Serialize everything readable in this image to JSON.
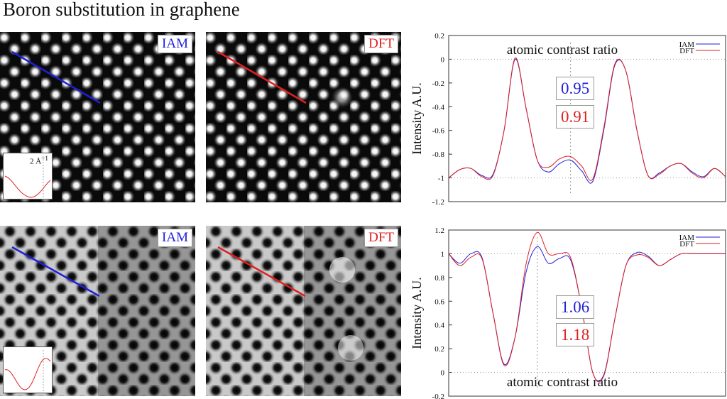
{
  "title": "Boron substitution in graphene",
  "colors": {
    "iam": "#1f1fd9",
    "dft": "#e02020"
  },
  "panels": {
    "top_left": {
      "label": "IAM",
      "inset_label": "2 Å",
      "inset_sup": "−1"
    },
    "top_right": {
      "label": "DFT"
    },
    "bottom_left": {
      "label": "IAM"
    },
    "bottom_right": {
      "label": "DFT"
    }
  },
  "chart_data": [
    {
      "type": "line",
      "title": "",
      "ylabel": "Intensity A.U.",
      "xlabel": "",
      "ylim": [
        -1.2,
        0.2
      ],
      "yticks": [
        "0.2",
        "0",
        "-0.2",
        "-0.4",
        "-0.6",
        "-0.8",
        "-1",
        "-1.2"
      ],
      "annotation": "atomic contrast ratio",
      "legend": [
        "IAM",
        "DFT"
      ],
      "ratios": {
        "iam": "0.95",
        "dft": "0.91"
      },
      "x": [
        0,
        0.04,
        0.08,
        0.12,
        0.16,
        0.2,
        0.24,
        0.28,
        0.32,
        0.36,
        0.4,
        0.44,
        0.48,
        0.52,
        0.56,
        0.6,
        0.64,
        0.68,
        0.72,
        0.76,
        0.8,
        0.84,
        0.88,
        0.92,
        0.96,
        1.0
      ],
      "series": [
        {
          "name": "IAM",
          "values": [
            -1.0,
            -0.93,
            -0.92,
            -0.98,
            -0.97,
            -0.6,
            0.0,
            -0.42,
            -0.85,
            -0.95,
            -0.88,
            -0.85,
            -0.94,
            -1.03,
            -0.6,
            -0.05,
            -0.1,
            -0.6,
            -0.98,
            -0.96,
            -0.9,
            -0.88,
            -0.95,
            -0.99,
            -0.92,
            -0.99
          ]
        },
        {
          "name": "DFT",
          "values": [
            -1.0,
            -0.93,
            -0.92,
            -0.99,
            -0.98,
            -0.6,
            0.01,
            -0.42,
            -0.85,
            -0.91,
            -0.84,
            -0.82,
            -0.9,
            -1.01,
            -0.58,
            -0.04,
            -0.1,
            -0.6,
            -0.98,
            -0.97,
            -0.9,
            -0.88,
            -0.96,
            -1.0,
            -0.92,
            -0.99
          ]
        }
      ]
    },
    {
      "type": "line",
      "title": "",
      "ylabel": "Intensity A.U.",
      "xlabel": "",
      "ylim": [
        -0.2,
        1.2
      ],
      "yticks": [
        "1.2",
        "1",
        "0.8",
        "0.6",
        "0.4",
        "0.2",
        "0",
        "-0.2"
      ],
      "annotation": "atomic contrast ratio",
      "legend": [
        "IAM",
        "DFT"
      ],
      "ratios": {
        "iam": "1.06",
        "dft": "1.18"
      },
      "x": [
        0,
        0.04,
        0.08,
        0.12,
        0.16,
        0.2,
        0.24,
        0.28,
        0.32,
        0.36,
        0.4,
        0.44,
        0.48,
        0.52,
        0.56,
        0.6,
        0.64,
        0.68,
        0.72,
        0.76,
        0.8,
        0.84,
        0.88,
        0.92,
        0.96,
        1.0
      ],
      "series": [
        {
          "name": "IAM",
          "values": [
            1.0,
            0.92,
            1.0,
            0.97,
            0.5,
            0.07,
            0.3,
            0.85,
            1.06,
            0.92,
            0.96,
            0.95,
            0.55,
            0.0,
            -0.02,
            0.45,
            0.9,
            1.01,
            0.98,
            0.9,
            0.95,
            1.0,
            1.0,
            1.0,
            1.0,
            1.0
          ]
        },
        {
          "name": "DFT",
          "values": [
            1.0,
            0.9,
            0.97,
            0.96,
            0.5,
            0.06,
            0.3,
            0.92,
            1.18,
            1.0,
            1.0,
            0.97,
            0.55,
            0.0,
            -0.03,
            0.45,
            0.9,
            0.99,
            0.97,
            0.9,
            0.95,
            1.0,
            1.0,
            1.0,
            1.0,
            1.0
          ]
        }
      ]
    }
  ]
}
